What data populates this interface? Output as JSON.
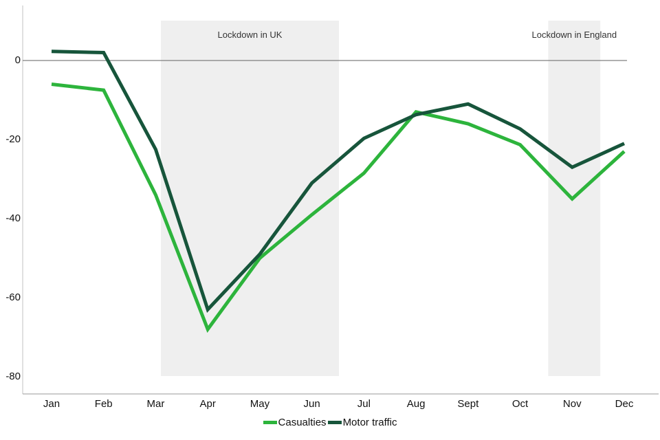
{
  "figure": {
    "background": "#ffffff",
    "region_fill": "#efefef",
    "y_axis_color": "#c2c2c2",
    "x_axis_color": "#9a9a9a",
    "zero_line_color": "#606060"
  },
  "chart_data": {
    "type": "line",
    "title": "",
    "xlabel": "",
    "ylabel": "",
    "x": [
      "Jan",
      "Feb",
      "Mar",
      "Apr",
      "May",
      "Jun",
      "Jul",
      "Aug",
      "Sept",
      "Oct",
      "Nov",
      "Dec"
    ],
    "series": [
      {
        "name": "Casualties",
        "color": "#2db43c",
        "values": [
          -6,
          -7.5,
          -34,
          -68,
          -50,
          -39,
          -28.5,
          -13,
          -16,
          -21.3,
          -35,
          -23
        ]
      },
      {
        "name": "Motor traffic",
        "color": "#17553b",
        "values": [
          2.3,
          2,
          -22.5,
          -63,
          -49,
          -31,
          -19.7,
          -13.7,
          -11,
          -17.3,
          -27,
          -21
        ]
      }
    ],
    "yticks": [
      0,
      -20,
      -40,
      -60,
      -80
    ],
    "ylim": [
      -84,
      10
    ],
    "grid": "zero-line-only",
    "legend_position": "bottom-center",
    "annotations": [
      {
        "label": "Lockdown in UK",
        "start_index": 2.1,
        "end_index": 5.52
      },
      {
        "label": "Lockdown in England",
        "start_index": 9.54,
        "end_index": 10.54
      }
    ]
  },
  "legend": {
    "items": [
      {
        "label": "Casualties",
        "color": "#2db43c"
      },
      {
        "label": "Motor traffic",
        "color": "#17553b"
      }
    ]
  }
}
